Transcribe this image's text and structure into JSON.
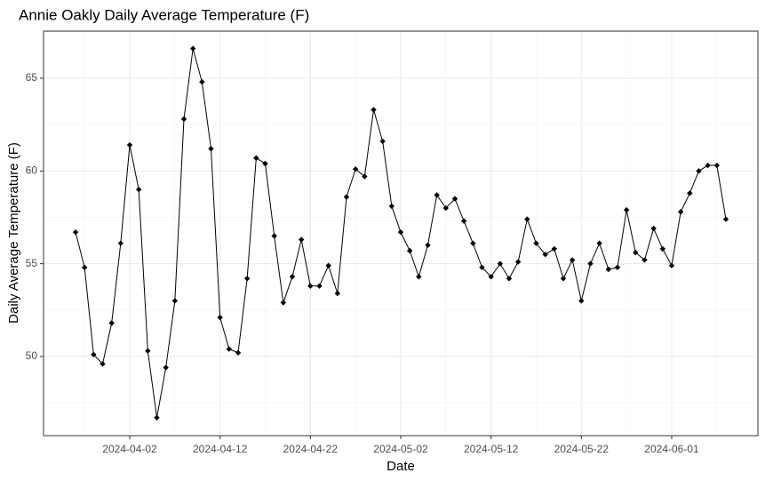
{
  "chart_data": {
    "type": "line",
    "title": "Annie Oakly Daily Average Temperature (F)",
    "x_label": "Date",
    "y_label": "Daily Average Temperature (F)",
    "x": [
      "2024-03-27",
      "2024-03-28",
      "2024-03-29",
      "2024-03-30",
      "2024-03-31",
      "2024-04-01",
      "2024-04-02",
      "2024-04-03",
      "2024-04-04",
      "2024-04-05",
      "2024-04-06",
      "2024-04-07",
      "2024-04-08",
      "2024-04-09",
      "2024-04-10",
      "2024-04-11",
      "2024-04-12",
      "2024-04-13",
      "2024-04-14",
      "2024-04-15",
      "2024-04-16",
      "2024-04-17",
      "2024-04-18",
      "2024-04-19",
      "2024-04-20",
      "2024-04-21",
      "2024-04-22",
      "2024-04-23",
      "2024-04-24",
      "2024-04-25",
      "2024-04-26",
      "2024-04-27",
      "2024-04-28",
      "2024-04-29",
      "2024-04-30",
      "2024-05-01",
      "2024-05-02",
      "2024-05-03",
      "2024-05-04",
      "2024-05-05",
      "2024-05-06",
      "2024-05-07",
      "2024-05-08",
      "2024-05-09",
      "2024-05-10",
      "2024-05-11",
      "2024-05-12",
      "2024-05-13",
      "2024-05-14",
      "2024-05-15",
      "2024-05-16",
      "2024-05-17",
      "2024-05-18",
      "2024-05-19",
      "2024-05-20",
      "2024-05-21",
      "2024-05-22",
      "2024-05-23",
      "2024-05-24",
      "2024-05-25",
      "2024-05-26",
      "2024-05-27",
      "2024-05-28",
      "2024-05-29",
      "2024-05-30",
      "2024-05-31",
      "2024-06-01",
      "2024-06-02",
      "2024-06-03",
      "2024-06-04",
      "2024-06-05",
      "2024-06-06",
      "2024-06-07"
    ],
    "series": [
      {
        "color": "#000000",
        "values": [
          56.7,
          54.8,
          50.1,
          49.6,
          51.8,
          56.1,
          61.4,
          59.0,
          50.3,
          46.7,
          49.4,
          53.0,
          62.8,
          66.6,
          64.8,
          61.2,
          52.1,
          50.4,
          50.2,
          54.2,
          60.7,
          60.4,
          56.5,
          52.9,
          54.3,
          56.3,
          53.8,
          53.8,
          54.9,
          53.4,
          58.6,
          60.1,
          59.7,
          63.3,
          61.6,
          58.1,
          56.7,
          55.7,
          54.3,
          56.0,
          58.7,
          58.0,
          58.5,
          57.3,
          56.1,
          54.8,
          54.3,
          55.0,
          54.2,
          55.1,
          57.4,
          56.1,
          55.5,
          55.8,
          54.2,
          55.2,
          53.0,
          55.0,
          56.1,
          54.7,
          54.8,
          57.9,
          55.6,
          55.2,
          56.9,
          55.8,
          54.9,
          57.8,
          58.8,
          60.0,
          60.3,
          60.3,
          57.4
        ]
      }
    ],
    "xlim": [
      "2024-03-23T11:00:00Z",
      "2024-06-10T13:00:00Z"
    ],
    "xticks": [
      "2024-04-02",
      "2024-04-12",
      "2024-04-22",
      "2024-05-02",
      "2024-05-12",
      "2024-05-22",
      "2024-06-01"
    ],
    "ylim": [
      45.73,
      67.54
    ],
    "yticks": [
      50,
      55,
      60,
      65
    ],
    "grid": true
  }
}
